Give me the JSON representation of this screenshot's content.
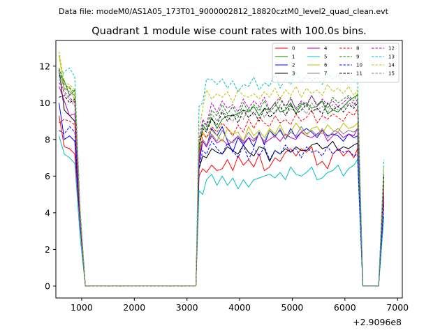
{
  "header": {
    "data_file_line": "Data file: modeM0/AS1A05_173T01_9000002812_18820cztM0_level2_quad_clean.evt"
  },
  "chart_data": {
    "type": "line",
    "title": "Quadrant 1 module wise count rates with 100.0s bins.",
    "xlabel": "",
    "ylabel": "",
    "x_offset_label": "+2.9096e8",
    "xlim": [
      510,
      7090
    ],
    "ylim": [
      -0.65,
      13.4
    ],
    "xticks": [
      1000,
      2000,
      3000,
      4000,
      5000,
      6000,
      7000
    ],
    "xtick_labels": [
      "1000",
      "2000",
      "3000",
      "4000",
      "5000",
      "6000",
      "7000"
    ],
    "yticks": [
      0,
      2,
      4,
      6,
      8,
      10,
      12
    ],
    "ytick_labels": [
      "0",
      "2",
      "4",
      "6",
      "8",
      "10",
      "12"
    ],
    "grid": false,
    "legend_position": "top-right",
    "legend_columns": 4,
    "x_segments": [
      [
        570,
        670,
        770,
        870,
        970,
        1070,
        1170,
        1270,
        1370,
        1470,
        1570,
        1670,
        1770,
        1870,
        1970,
        2070,
        2170,
        2270,
        2370,
        2470,
        2570,
        2670,
        2770,
        2870,
        2970,
        3070,
        3170,
        3230,
        3300,
        3370,
        3470,
        3570,
        3670,
        3770,
        3870,
        3970,
        4070,
        4170,
        4270,
        4370,
        4470,
        4570,
        4670,
        4770,
        4870,
        4970,
        5070,
        5170,
        5270,
        5370,
        5470,
        5570,
        5670,
        5770,
        5870,
        5970,
        6070,
        6170,
        6240,
        6340,
        6440,
        6540,
        6640,
        6740
      ]
    ],
    "series": [
      {
        "name": "0",
        "color": "#ff0000",
        "style": "solid",
        "values": [
          9.3,
          7.6,
          7.5,
          7.2,
          3.3,
          0.0,
          0.0,
          0.0,
          0.0,
          0.0,
          0.0,
          0.0,
          0.0,
          0.0,
          0.0,
          0.0,
          0.0,
          0.0,
          0.0,
          0.0,
          0.0,
          0.0,
          0.0,
          0.0,
          0.0,
          0.0,
          0.0,
          6.0,
          6.4,
          6.2,
          6.6,
          6.3,
          6.4,
          6.9,
          6.3,
          7.1,
          6.6,
          6.9,
          6.5,
          7.2,
          6.3,
          6.5,
          7.0,
          6.8,
          7.3,
          7.5,
          7.1,
          7.5,
          7.3,
          7.6,
          6.6,
          6.8,
          6.4,
          7.2,
          7.5,
          7.1,
          7.4,
          7.0,
          7.5,
          0.0,
          0.0,
          0.0,
          0.0,
          4.6
        ]
      },
      {
        "name": "1",
        "color": "#008000",
        "style": "solid",
        "values": [
          11.6,
          11.2,
          10.4,
          10.7,
          3.8,
          0.0,
          0.0,
          0.0,
          0.0,
          0.0,
          0.0,
          0.0,
          0.0,
          0.0,
          0.0,
          0.0,
          0.0,
          0.0,
          0.0,
          0.0,
          0.0,
          0.0,
          0.0,
          0.0,
          0.0,
          0.0,
          0.0,
          7.3,
          8.8,
          8.5,
          9.2,
          8.6,
          9.1,
          9.3,
          9.3,
          9.4,
          9.6,
          9.5,
          9.8,
          9.3,
          9.7,
          9.6,
          10.0,
          9.5,
          9.6,
          10.0,
          9.4,
          9.9,
          10.0,
          9.7,
          9.8,
          10.1,
          9.4,
          9.6,
          9.5,
          9.8,
          10.1,
          10.3,
          10.4,
          0.0,
          0.0,
          0.0,
          0.0,
          5.7
        ]
      },
      {
        "name": "2",
        "color": "#0000ff",
        "style": "solid",
        "values": [
          10.0,
          8.0,
          8.2,
          7.9,
          3.4,
          0.0,
          0.0,
          0.0,
          0.0,
          0.0,
          0.0,
          0.0,
          0.0,
          0.0,
          0.0,
          0.0,
          0.0,
          0.0,
          0.0,
          0.0,
          0.0,
          0.0,
          0.0,
          0.0,
          0.0,
          0.0,
          0.0,
          6.7,
          7.9,
          7.6,
          8.6,
          8.2,
          8.7,
          7.9,
          7.3,
          8.1,
          7.7,
          8.1,
          7.6,
          8.4,
          7.7,
          8.5,
          8.2,
          8.5,
          8.0,
          8.6,
          8.1,
          8.4,
          8.6,
          8.4,
          8.1,
          8.5,
          8.2,
          8.3,
          8.2,
          7.9,
          8.3,
          8.1,
          8.2,
          0.0,
          0.0,
          0.0,
          0.0,
          4.9
        ]
      },
      {
        "name": "3",
        "color": "#000000",
        "style": "solid",
        "values": [
          11.8,
          9.6,
          9.3,
          9.0,
          3.6,
          0.0,
          0.0,
          0.0,
          0.0,
          0.0,
          0.0,
          0.0,
          0.0,
          0.0,
          0.0,
          0.0,
          0.0,
          0.0,
          0.0,
          0.0,
          0.0,
          0.0,
          0.0,
          0.0,
          0.0,
          0.0,
          0.0,
          6.4,
          7.1,
          7.0,
          7.5,
          7.3,
          7.2,
          7.6,
          7.4,
          7.2,
          7.7,
          7.3,
          7.1,
          7.6,
          7.5,
          6.8,
          7.4,
          7.2,
          7.5,
          7.3,
          7.6,
          7.4,
          7.4,
          7.7,
          7.8,
          7.5,
          7.6,
          7.9,
          7.4,
          7.6,
          7.5,
          7.7,
          7.8,
          0.0,
          0.0,
          0.0,
          0.0,
          4.9
        ]
      },
      {
        "name": "4",
        "color": "#bf00bf",
        "style": "solid",
        "values": [
          10.9,
          10.1,
          9.3,
          9.4,
          3.7,
          0.0,
          0.0,
          0.0,
          0.0,
          0.0,
          0.0,
          0.0,
          0.0,
          0.0,
          0.0,
          0.0,
          0.0,
          0.0,
          0.0,
          0.0,
          0.0,
          0.0,
          0.0,
          0.0,
          0.0,
          0.0,
          0.0,
          7.0,
          7.9,
          7.6,
          8.2,
          7.8,
          8.0,
          7.7,
          7.9,
          8.2,
          7.8,
          8.1,
          7.9,
          8.3,
          7.8,
          8.0,
          8.2,
          7.9,
          8.3,
          8.1,
          8.0,
          8.4,
          8.2,
          8.1,
          8.3,
          8.5,
          7.9,
          8.2,
          8.4,
          8.1,
          8.3,
          8.2,
          8.6,
          0.0,
          0.0,
          0.0,
          0.0,
          5.1
        ]
      },
      {
        "name": "5",
        "color": "#00bfbf",
        "style": "solid",
        "values": [
          8.2,
          7.2,
          7.0,
          6.7,
          2.7,
          0.0,
          0.0,
          0.0,
          0.0,
          0.0,
          0.0,
          0.0,
          0.0,
          0.0,
          0.0,
          0.0,
          0.0,
          0.0,
          0.0,
          0.0,
          0.0,
          0.0,
          0.0,
          0.0,
          0.0,
          0.0,
          0.0,
          5.2,
          5.0,
          5.8,
          6.1,
          5.5,
          6.0,
          5.5,
          5.9,
          5.3,
          5.8,
          5.4,
          5.8,
          5.9,
          6.0,
          6.1,
          5.9,
          6.2,
          5.8,
          6.5,
          6.1,
          6.0,
          6.2,
          6.5,
          5.8,
          5.9,
          6.2,
          6.3,
          6.6,
          6.0,
          6.4,
          6.6,
          6.9,
          0.0,
          0.0,
          0.0,
          0.0,
          3.8
        ]
      },
      {
        "name": "6",
        "color": "#bfbf00",
        "style": "solid",
        "values": [
          12.6,
          10.7,
          10.9,
          10.1,
          4.0,
          0.0,
          0.0,
          0.0,
          0.0,
          0.0,
          0.0,
          0.0,
          0.0,
          0.0,
          0.0,
          0.0,
          0.0,
          0.0,
          0.0,
          0.0,
          0.0,
          0.0,
          0.0,
          0.0,
          0.0,
          0.0,
          0.0,
          7.6,
          8.4,
          8.1,
          8.5,
          8.2,
          7.9,
          8.6,
          8.3,
          8.4,
          7.9,
          8.7,
          8.2,
          8.5,
          8.1,
          8.6,
          8.3,
          8.8,
          8.2,
          8.4,
          8.9,
          8.5,
          8.2,
          8.6,
          8.7,
          8.3,
          8.8,
          8.5,
          8.4,
          8.9,
          8.6,
          8.7,
          8.9,
          0.0,
          0.0,
          0.0,
          0.0,
          5.4
        ]
      },
      {
        "name": "7",
        "color": "#808080",
        "style": "solid",
        "values": [
          11.7,
          10.8,
          10.6,
          10.4,
          3.9,
          0.0,
          0.0,
          0.0,
          0.0,
          0.0,
          0.0,
          0.0,
          0.0,
          0.0,
          0.0,
          0.0,
          0.0,
          0.0,
          0.0,
          0.0,
          0.0,
          0.0,
          0.0,
          0.0,
          0.0,
          0.0,
          0.0,
          7.2,
          8.0,
          7.7,
          8.3,
          7.9,
          8.5,
          8.0,
          7.8,
          8.2,
          7.9,
          8.4,
          8.0,
          8.3,
          7.9,
          8.5,
          8.1,
          8.6,
          8.0,
          8.4,
          8.2,
          8.7,
          8.3,
          8.5,
          8.2,
          8.6,
          8.1,
          8.4,
          8.6,
          8.3,
          8.5,
          8.4,
          8.6,
          0.0,
          0.0,
          0.0,
          0.0,
          5.2
        ]
      },
      {
        "name": "8",
        "color": "#ff0000",
        "style": "dashed",
        "values": [
          8.9,
          9.1,
          9.0,
          8.8,
          3.5,
          0.0,
          0.0,
          0.0,
          0.0,
          0.0,
          0.0,
          0.0,
          0.0,
          0.0,
          0.0,
          0.0,
          0.0,
          0.0,
          0.0,
          0.0,
          0.0,
          0.0,
          0.0,
          0.0,
          0.0,
          0.0,
          0.0,
          6.9,
          8.3,
          8.1,
          8.7,
          8.4,
          8.9,
          8.6,
          8.2,
          8.8,
          8.4,
          9.1,
          8.6,
          9.2,
          8.9,
          8.7,
          9.3,
          8.9,
          9.1,
          8.8,
          9.4,
          9.0,
          9.2,
          9.6,
          8.9,
          9.3,
          9.1,
          9.4,
          9.2,
          9.0,
          9.5,
          9.3,
          9.7,
          0.0,
          0.0,
          0.0,
          0.0,
          5.5
        ]
      },
      {
        "name": "9",
        "color": "#008000",
        "style": "dashed",
        "values": [
          11.9,
          11.0,
          10.8,
          10.6,
          4.0,
          0.0,
          0.0,
          0.0,
          0.0,
          0.0,
          0.0,
          0.0,
          0.0,
          0.0,
          0.0,
          0.0,
          0.0,
          0.0,
          0.0,
          0.0,
          0.0,
          0.0,
          0.0,
          0.0,
          0.0,
          0.0,
          0.0,
          8.0,
          9.0,
          8.7,
          9.6,
          9.3,
          9.9,
          9.4,
          9.8,
          9.2,
          10.0,
          9.5,
          9.9,
          9.6,
          10.1,
          9.5,
          9.8,
          10.2,
          9.7,
          10.3,
          9.6,
          10.0,
          9.8,
          10.4,
          9.9,
          10.1,
          9.7,
          10.3,
          10.0,
          10.2,
          10.4,
          10.1,
          10.5,
          0.0,
          0.0,
          0.0,
          0.0,
          6.1
        ]
      },
      {
        "name": "10",
        "color": "#0000ff",
        "style": "dashed",
        "values": [
          8.5,
          8.3,
          8.7,
          8.4,
          3.4,
          0.0,
          0.0,
          0.0,
          0.0,
          0.0,
          0.0,
          0.0,
          0.0,
          0.0,
          0.0,
          0.0,
          0.0,
          0.0,
          0.0,
          0.0,
          0.0,
          0.0,
          0.0,
          0.0,
          0.0,
          0.0,
          0.0,
          6.5,
          7.4,
          7.2,
          7.9,
          7.5,
          7.2,
          7.8,
          7.4,
          7.0,
          7.7,
          6.9,
          7.5,
          7.1,
          7.6,
          6.9,
          7.4,
          7.2,
          7.7,
          7.3,
          7.5,
          7.0,
          7.6,
          7.3,
          7.4,
          7.1,
          7.6,
          7.2,
          7.5,
          7.3,
          7.4,
          7.1,
          7.2,
          0.0,
          0.0,
          0.0,
          0.0,
          4.4
        ]
      },
      {
        "name": "11",
        "color": "#000000",
        "style": "dashed",
        "values": [
          10.3,
          10.4,
          10.0,
          10.2,
          3.9,
          0.0,
          0.0,
          0.0,
          0.0,
          0.0,
          0.0,
          0.0,
          0.0,
          0.0,
          0.0,
          0.0,
          0.0,
          0.0,
          0.0,
          0.0,
          0.0,
          0.0,
          0.0,
          0.0,
          0.0,
          0.0,
          0.0,
          7.6,
          8.6,
          8.4,
          9.1,
          8.8,
          9.5,
          9.0,
          9.4,
          8.9,
          9.6,
          9.2,
          9.5,
          9.0,
          9.7,
          9.2,
          9.5,
          9.8,
          9.3,
          9.9,
          9.4,
          9.6,
          9.9,
          9.5,
          9.7,
          9.4,
          10.0,
          9.6,
          9.8,
          9.5,
          9.9,
          9.7,
          10.0,
          0.0,
          0.0,
          0.0,
          0.0,
          6.0
        ]
      },
      {
        "name": "12",
        "color": "#bf00bf",
        "style": "dashed",
        "values": [
          11.1,
          10.6,
          10.3,
          10.0,
          3.8,
          0.0,
          0.0,
          0.0,
          0.0,
          0.0,
          0.0,
          0.0,
          0.0,
          0.0,
          0.0,
          0.0,
          0.0,
          0.0,
          0.0,
          0.0,
          0.0,
          0.0,
          0.0,
          0.0,
          0.0,
          0.0,
          0.0,
          7.9,
          9.1,
          8.8,
          10.0,
          9.5,
          10.1,
          9.7,
          9.9,
          9.5,
          10.2,
          9.7,
          10.1,
          9.8,
          10.3,
          9.6,
          10.0,
          10.3,
          9.8,
          10.2,
          9.7,
          10.1,
          9.9,
          10.4,
          9.8,
          10.2,
          9.9,
          10.1,
          9.8,
          10.0,
          10.3,
          9.9,
          10.2,
          0.0,
          0.0,
          0.0,
          0.0,
          6.2
        ]
      },
      {
        "name": "13",
        "color": "#00bfbf",
        "style": "dashed",
        "values": [
          11.2,
          11.7,
          11.9,
          11.4,
          4.3,
          0.0,
          0.0,
          0.0,
          0.0,
          0.0,
          0.0,
          0.0,
          0.0,
          0.0,
          0.0,
          0.0,
          0.0,
          0.0,
          0.0,
          0.0,
          0.0,
          0.0,
          0.0,
          0.0,
          0.0,
          0.0,
          0.0,
          9.8,
          10.0,
          11.3,
          11.3,
          11.0,
          11.3,
          10.8,
          11.2,
          10.6,
          11.0,
          10.9,
          11.4,
          10.7,
          11.1,
          10.9,
          11.6,
          10.8,
          11.3,
          11.0,
          11.7,
          11.1,
          11.5,
          11.2,
          11.4,
          11.0,
          11.6,
          11.3,
          11.5,
          11.1,
          11.4,
          11.2,
          11.3,
          0.0,
          0.0,
          0.0,
          0.0,
          6.9
        ]
      },
      {
        "name": "14",
        "color": "#bfbf00",
        "style": "dashed",
        "values": [
          12.8,
          11.1,
          11.0,
          10.7,
          4.1,
          0.0,
          0.0,
          0.0,
          0.0,
          0.0,
          0.0,
          0.0,
          0.0,
          0.0,
          0.0,
          0.0,
          0.0,
          0.0,
          0.0,
          0.0,
          0.0,
          0.0,
          0.0,
          0.0,
          0.0,
          0.0,
          0.0,
          8.5,
          9.7,
          10.7,
          10.2,
          10.5,
          10.3,
          10.6,
          10.0,
          10.7,
          10.4,
          10.3,
          10.5,
          10.2,
          10.6,
          10.3,
          10.8,
          10.2,
          10.7,
          10.4,
          10.9,
          10.3,
          10.8,
          10.5,
          10.7,
          10.4,
          11.0,
          10.6,
          10.8,
          10.5,
          10.9,
          10.4,
          10.7,
          0.0,
          0.0,
          0.0,
          0.0,
          6.5
        ]
      },
      {
        "name": "15",
        "color": "#808080",
        "style": "dashed",
        "values": [
          11.5,
          10.5,
          10.2,
          9.8,
          3.7,
          0.0,
          0.0,
          0.0,
          0.0,
          0.0,
          0.0,
          0.0,
          0.0,
          0.0,
          0.0,
          0.0,
          0.0,
          0.0,
          0.0,
          0.0,
          0.0,
          0.0,
          0.0,
          0.0,
          0.0,
          0.0,
          0.0,
          7.8,
          8.7,
          8.5,
          9.4,
          9.0,
          9.6,
          9.2,
          9.0,
          9.5,
          9.1,
          9.7,
          9.3,
          9.8,
          9.2,
          9.6,
          9.4,
          9.9,
          9.3,
          9.7,
          9.5,
          9.8,
          9.4,
          10.0,
          9.6,
          9.8,
          9.5,
          9.9,
          9.6,
          9.7,
          10.0,
          9.8,
          10.1,
          0.0,
          0.0,
          0.0,
          0.0,
          5.9
        ]
      }
    ]
  }
}
